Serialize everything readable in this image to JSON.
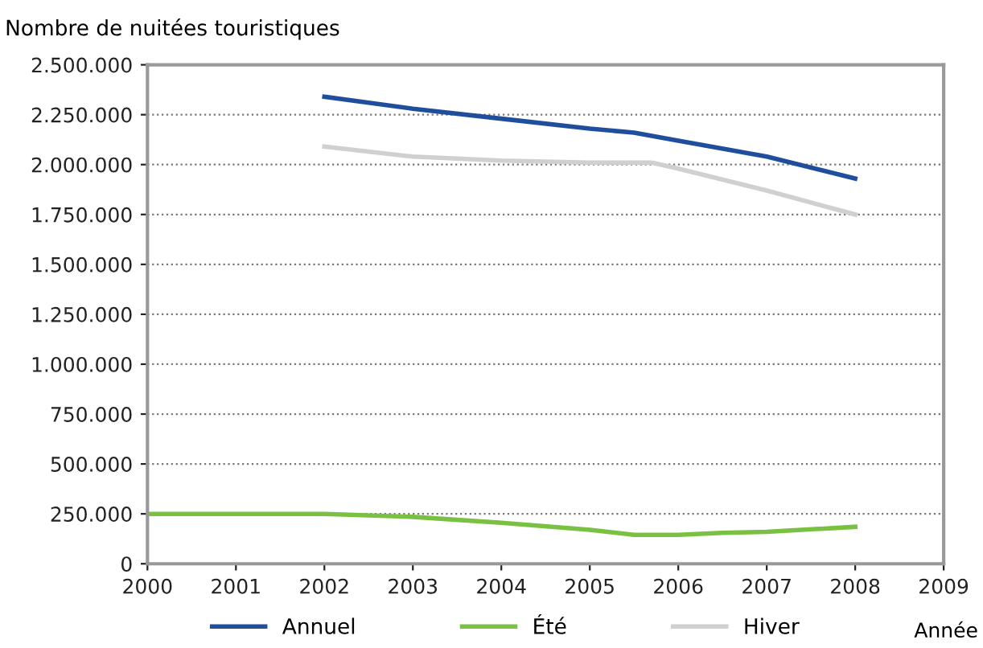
{
  "chart_data": {
    "type": "line",
    "ylabel": "Nombre de nuitées touristiques",
    "xlabel": "Année",
    "xlim": [
      2000,
      2009
    ],
    "xticks": [
      2000,
      2001,
      2002,
      2003,
      2004,
      2005,
      2006,
      2007,
      2008,
      2009
    ],
    "ylim": [
      0,
      2500000
    ],
    "yticks": [
      {
        "value": 0,
        "label": "0"
      },
      {
        "value": 250000,
        "label": "250.000"
      },
      {
        "value": 500000,
        "label": "500.000"
      },
      {
        "value": 750000,
        "label": "750.000"
      },
      {
        "value": 1000000,
        "label": "1.000.000"
      },
      {
        "value": 1250000,
        "label": "1.250.000"
      },
      {
        "value": 1500000,
        "label": "1.500.000"
      },
      {
        "value": 1750000,
        "label": "1.750.000"
      },
      {
        "value": 2000000,
        "label": "2.000.000"
      },
      {
        "value": 2250000,
        "label": "2.250.000"
      },
      {
        "value": 2500000,
        "label": "2.500.000"
      }
    ],
    "grid": "y",
    "legend": "bottom",
    "series": [
      {
        "name": "Annuel",
        "color": "#1f4e9c",
        "x": [
          2002,
          2003,
          2004,
          2005,
          2005.5,
          2006,
          2007,
          2008
        ],
        "values": [
          2340000,
          2280000,
          2230000,
          2180000,
          2160000,
          2120000,
          2040000,
          1930000
        ]
      },
      {
        "name": "Été",
        "color": "#7ac143",
        "x": [
          2000,
          2001,
          2002,
          2003,
          2004,
          2005,
          2005.5,
          2006,
          2006.5,
          2007,
          2008
        ],
        "values": [
          250000,
          250000,
          250000,
          235000,
          205000,
          170000,
          145000,
          145000,
          155000,
          160000,
          185000
        ]
      },
      {
        "name": "Hiver",
        "color": "#d0d0d0",
        "x": [
          2002,
          2003,
          2004,
          2005,
          2005.7,
          2006,
          2007,
          2008
        ],
        "values": [
          2090000,
          2040000,
          2020000,
          2010000,
          2010000,
          1980000,
          1870000,
          1750000
        ]
      }
    ]
  }
}
